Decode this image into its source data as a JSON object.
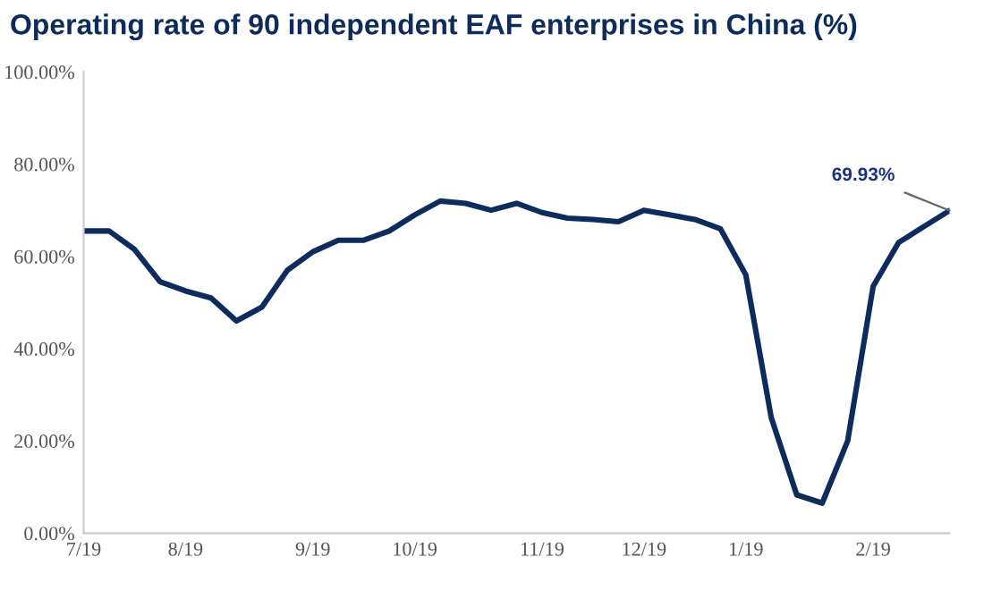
{
  "chart_data": {
    "type": "line",
    "title": "Operating rate of 90 independent EAF enterprises in China (%)",
    "categories": [
      "7/19",
      null,
      null,
      null,
      "8/19",
      null,
      null,
      null,
      null,
      "9/19",
      null,
      null,
      null,
      "10/19",
      null,
      null,
      null,
      null,
      "11/19",
      null,
      null,
      null,
      "12/19",
      null,
      null,
      null,
      "1/19",
      null,
      null,
      null,
      null,
      "2/19",
      null,
      null,
      null
    ],
    "series": [
      {
        "color": "#0d2b5c",
        "values": [
          65.5,
          65.5,
          61.5,
          54.5,
          52.5,
          51,
          46,
          49,
          57,
          61,
          63.5,
          63.5,
          65.5,
          69,
          72,
          71.5,
          70,
          71.5,
          69.5,
          68.3,
          68,
          67.5,
          70,
          69,
          68,
          66,
          56,
          25,
          8.3,
          6.5,
          20,
          53.5,
          63,
          66.5,
          69.93
        ],
        "value_labels": [
          null,
          null,
          null,
          null,
          null,
          null,
          null,
          null,
          null,
          null,
          null,
          null,
          null,
          null,
          null,
          null,
          null,
          null,
          null,
          null,
          null,
          null,
          null,
          null,
          null,
          null,
          null,
          null,
          null,
          null,
          null,
          null,
          null,
          null,
          "69.93%"
        ]
      }
    ],
    "ylim": [
      0,
      100
    ],
    "yticks": [
      {
        "value": 0,
        "label": "0.00%"
      },
      {
        "value": 20,
        "label": "20.00%"
      },
      {
        "value": 40,
        "label": "40.00%"
      },
      {
        "value": 60,
        "label": "60.00%"
      },
      {
        "value": 80,
        "label": "80.00%"
      },
      {
        "value": 100,
        "label": "100.00%"
      }
    ],
    "grid": false,
    "legend": false,
    "marker": "none",
    "line_style": "solid"
  }
}
